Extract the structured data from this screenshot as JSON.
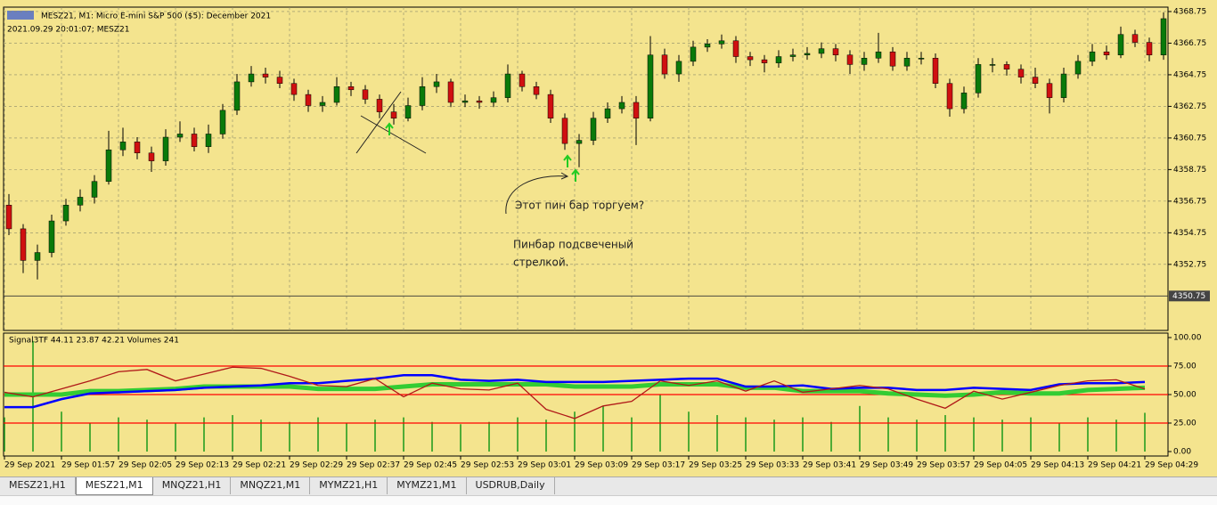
{
  "header": {
    "title": "MESZ21, M1:  Micro E-mini S&P 500 ($5): December 2021",
    "info": "2021.09.29 20:01:07; MESZ21"
  },
  "chart_data": [
    {
      "type": "candlestick",
      "open": [
        4356.5,
        4355.0,
        4353.0,
        4353.5,
        4355.5,
        4356.5,
        4357.0,
        4358.0,
        4360.0,
        4360.5,
        4359.8,
        4359.3,
        4360.8,
        4361.0,
        4360.2,
        4361.0,
        4362.5,
        4364.3,
        4364.8,
        4364.6,
        4364.2,
        4363.5,
        4362.8,
        4363.0,
        4364.0,
        4363.8,
        4363.2,
        4362.4,
        4362.0,
        4362.8,
        4364.0,
        4364.3,
        4363.0,
        4363.1,
        4363.0,
        4363.3,
        4364.8,
        4364.0,
        4363.5,
        4362.0,
        4360.4,
        4360.6,
        4362.0,
        4362.6,
        4363.0,
        4362.0,
        4366.0,
        4364.8,
        4365.6,
        4366.5,
        4366.7,
        4366.9,
        4365.9,
        4365.7,
        4365.5,
        4365.9,
        4366.0,
        4366.1,
        4366.4,
        4366.0,
        4365.4,
        4365.8,
        4366.2,
        4365.3,
        4365.8,
        4365.8,
        4364.2,
        4362.6,
        4363.6,
        4365.4,
        4365.4,
        4365.1,
        4364.6,
        4364.2,
        4363.3,
        4364.8,
        4365.6,
        4366.2,
        4366.0,
        4367.3,
        4366.8,
        4366.0
      ],
      "high": [
        4357.2,
        4355.3,
        4354.0,
        4355.9,
        4356.9,
        4357.5,
        4358.4,
        4361.2,
        4361.4,
        4360.8,
        4360.2,
        4361.3,
        4361.8,
        4361.4,
        4361.6,
        4362.9,
        4364.8,
        4365.3,
        4365.2,
        4365.0,
        4364.5,
        4363.8,
        4363.4,
        4364.6,
        4364.3,
        4364.1,
        4363.5,
        4362.9,
        4363.3,
        4364.6,
        4364.8,
        4364.5,
        4363.5,
        4363.4,
        4363.7,
        4365.4,
        4365.0,
        4364.3,
        4363.8,
        4362.3,
        4361.0,
        4362.4,
        4363.0,
        4363.4,
        4363.4,
        4367.2,
        4366.4,
        4366.0,
        4366.9,
        4367.0,
        4367.3,
        4367.2,
        4366.2,
        4366.0,
        4366.3,
        4366.4,
        4366.5,
        4366.8,
        4366.7,
        4366.3,
        4366.2,
        4367.4,
        4366.5,
        4366.2,
        4366.2,
        4366.1,
        4364.5,
        4364.0,
        4365.8,
        4365.8,
        4365.6,
        4365.4,
        4365.2,
        4364.5,
        4365.2,
        4366.0,
        4366.7,
        4366.6,
        4367.8,
        4367.6,
        4367.1,
        4368.7
      ],
      "low": [
        4354.6,
        4352.2,
        4351.8,
        4353.2,
        4355.2,
        4356.1,
        4356.6,
        4357.8,
        4359.6,
        4359.4,
        4358.6,
        4359.0,
        4360.5,
        4359.9,
        4359.8,
        4360.7,
        4362.2,
        4364.0,
        4364.2,
        4363.9,
        4363.1,
        4362.4,
        4362.4,
        4362.8,
        4363.4,
        4362.9,
        4362.0,
        4361.6,
        4361.8,
        4362.5,
        4363.6,
        4362.7,
        4362.7,
        4362.6,
        4362.7,
        4363.0,
        4363.7,
        4363.2,
        4361.7,
        4360.0,
        4358.9,
        4360.3,
        4361.7,
        4362.3,
        4360.3,
        4361.8,
        4364.5,
        4364.3,
        4365.3,
        4366.2,
        4366.4,
        4365.5,
        4365.3,
        4364.9,
        4365.2,
        4365.6,
        4365.7,
        4365.8,
        4365.6,
        4364.8,
        4365.0,
        4365.5,
        4365.0,
        4365.0,
        4365.4,
        4363.9,
        4362.1,
        4362.3,
        4363.3,
        4364.9,
        4364.7,
        4364.2,
        4363.9,
        4362.3,
        4363.0,
        4364.5,
        4365.3,
        4365.7,
        4365.8,
        4366.5,
        4365.6,
        4365.7
      ],
      "close": [
        4355.0,
        4353.0,
        4353.5,
        4355.5,
        4356.5,
        4357.0,
        4358.0,
        4360.0,
        4360.5,
        4359.8,
        4359.3,
        4360.8,
        4361.0,
        4360.2,
        4361.0,
        4362.5,
        4364.3,
        4364.8,
        4364.6,
        4364.2,
        4363.5,
        4362.8,
        4363.0,
        4364.0,
        4363.8,
        4363.2,
        4362.4,
        4362.0,
        4362.8,
        4364.0,
        4364.3,
        4363.0,
        4363.1,
        4363.0,
        4363.3,
        4364.8,
        4364.0,
        4363.5,
        4362.0,
        4360.4,
        4360.6,
        4362.0,
        4362.6,
        4363.0,
        4362.0,
        4366.0,
        4364.8,
        4365.6,
        4366.5,
        4366.7,
        4366.9,
        4365.9,
        4365.7,
        4365.5,
        4365.9,
        4366.0,
        4366.1,
        4366.4,
        4366.0,
        4365.4,
        4365.8,
        4366.2,
        4365.3,
        4365.8,
        4365.8,
        4364.2,
        4362.6,
        4363.6,
        4365.4,
        4365.4,
        4365.1,
        4364.6,
        4364.2,
        4363.3,
        4364.8,
        4365.6,
        4366.2,
        4366.0,
        4367.3,
        4366.8,
        4366.0,
        4368.3
      ],
      "up_color": "#0a7a0a",
      "down_color": "#d01010",
      "ylim": [
        4348.57,
        4369.03
      ],
      "yticks": [
        4352.75,
        4354.75,
        4356.75,
        4358.75,
        4360.75,
        4362.75,
        4364.75,
        4366.75,
        4368.75
      ],
      "price_line": 4350.75,
      "grid": true,
      "x_labels": [
        "29 Sep 2021",
        "29 Sep 01:57",
        "29 Sep 02:05",
        "29 Sep 02:13",
        "29 Sep 02:21",
        "29 Sep 02:29",
        "29 Sep 02:37",
        "29 Sep 02:45",
        "29 Sep 02:53",
        "29 Sep 03:01",
        "29 Sep 03:09",
        "29 Sep 03:17",
        "29 Sep 03:25",
        "29 Sep 03:33",
        "29 Sep 03:41",
        "29 Sep 03:49",
        "29 Sep 03:57",
        "29 Sep 04:05",
        "29 Sep 04:13",
        "29 Sep 04:21",
        "29 Sep 04:29"
      ],
      "annotations": [
        "Этот пин бар торгуем?",
        "Пинбар подсвеченый",
        "стрелкой."
      ]
    },
    {
      "type": "indicator",
      "title": "Signal3TF 44.11 23.87 42.21 Volumes 241",
      "ylim": [
        -3.9,
        103.9
      ],
      "yticks": [
        {
          "value": 0,
          "label": "0.00"
        },
        {
          "value": 25,
          "label": "25.00"
        },
        {
          "value": 50,
          "label": "50.00"
        },
        {
          "value": 75,
          "label": "75.00"
        },
        {
          "value": 100,
          "label": "100.00"
        }
      ],
      "levels": [
        25,
        50,
        75
      ],
      "level_color": "#ff0000",
      "series": [
        {
          "color": "#33cc33",
          "values": [
            50,
            50,
            50,
            53,
            53,
            54,
            55,
            57,
            57,
            57,
            57,
            55,
            55,
            55,
            57,
            59,
            59,
            59,
            59,
            59,
            57,
            57,
            57,
            59,
            59,
            59,
            56,
            56,
            53,
            53,
            53,
            51,
            50,
            49,
            50,
            52,
            51,
            51,
            54,
            55,
            56
          ]
        },
        {
          "color": "#0000ff",
          "values": [
            39,
            39,
            46,
            51,
            52,
            53,
            54,
            56,
            57,
            58,
            60,
            60,
            62,
            64,
            67,
            67,
            63,
            62,
            63,
            61,
            61,
            61,
            62,
            63,
            64,
            64,
            57,
            57,
            58,
            55,
            56,
            56,
            54,
            54,
            56,
            55,
            54,
            59,
            60,
            60,
            61
          ]
        },
        {
          "color": "#b01818",
          "values": [
            52,
            48,
            55,
            62,
            70,
            72,
            62,
            68,
            74,
            73,
            66,
            58,
            57,
            64,
            48,
            60,
            55,
            54,
            60,
            37,
            29,
            40,
            44,
            62,
            58,
            62,
            53,
            62,
            52,
            55,
            58,
            55,
            46,
            38,
            53,
            46,
            52,
            58,
            62,
            63,
            55
          ]
        }
      ],
      "volumes": {
        "color": "#1a9a1a",
        "values": [
          30,
          97,
          35,
          25,
          30,
          28,
          25,
          30,
          32,
          28,
          26,
          30,
          25,
          28,
          30,
          26,
          24,
          26,
          30,
          28,
          35,
          40,
          30,
          50,
          35,
          32,
          30,
          28,
          30,
          26,
          40,
          30,
          28,
          32,
          30,
          28,
          30,
          25,
          30,
          28,
          34
        ]
      }
    }
  ],
  "tabs": [
    "MESZ21,H1",
    "MESZ21,M1",
    "MNQZ21,H1",
    "MNQZ21,M1",
    "MYMZ21,H1",
    "MYMZ21,M1",
    "USDRUB,Daily"
  ],
  "active_tab": 1
}
